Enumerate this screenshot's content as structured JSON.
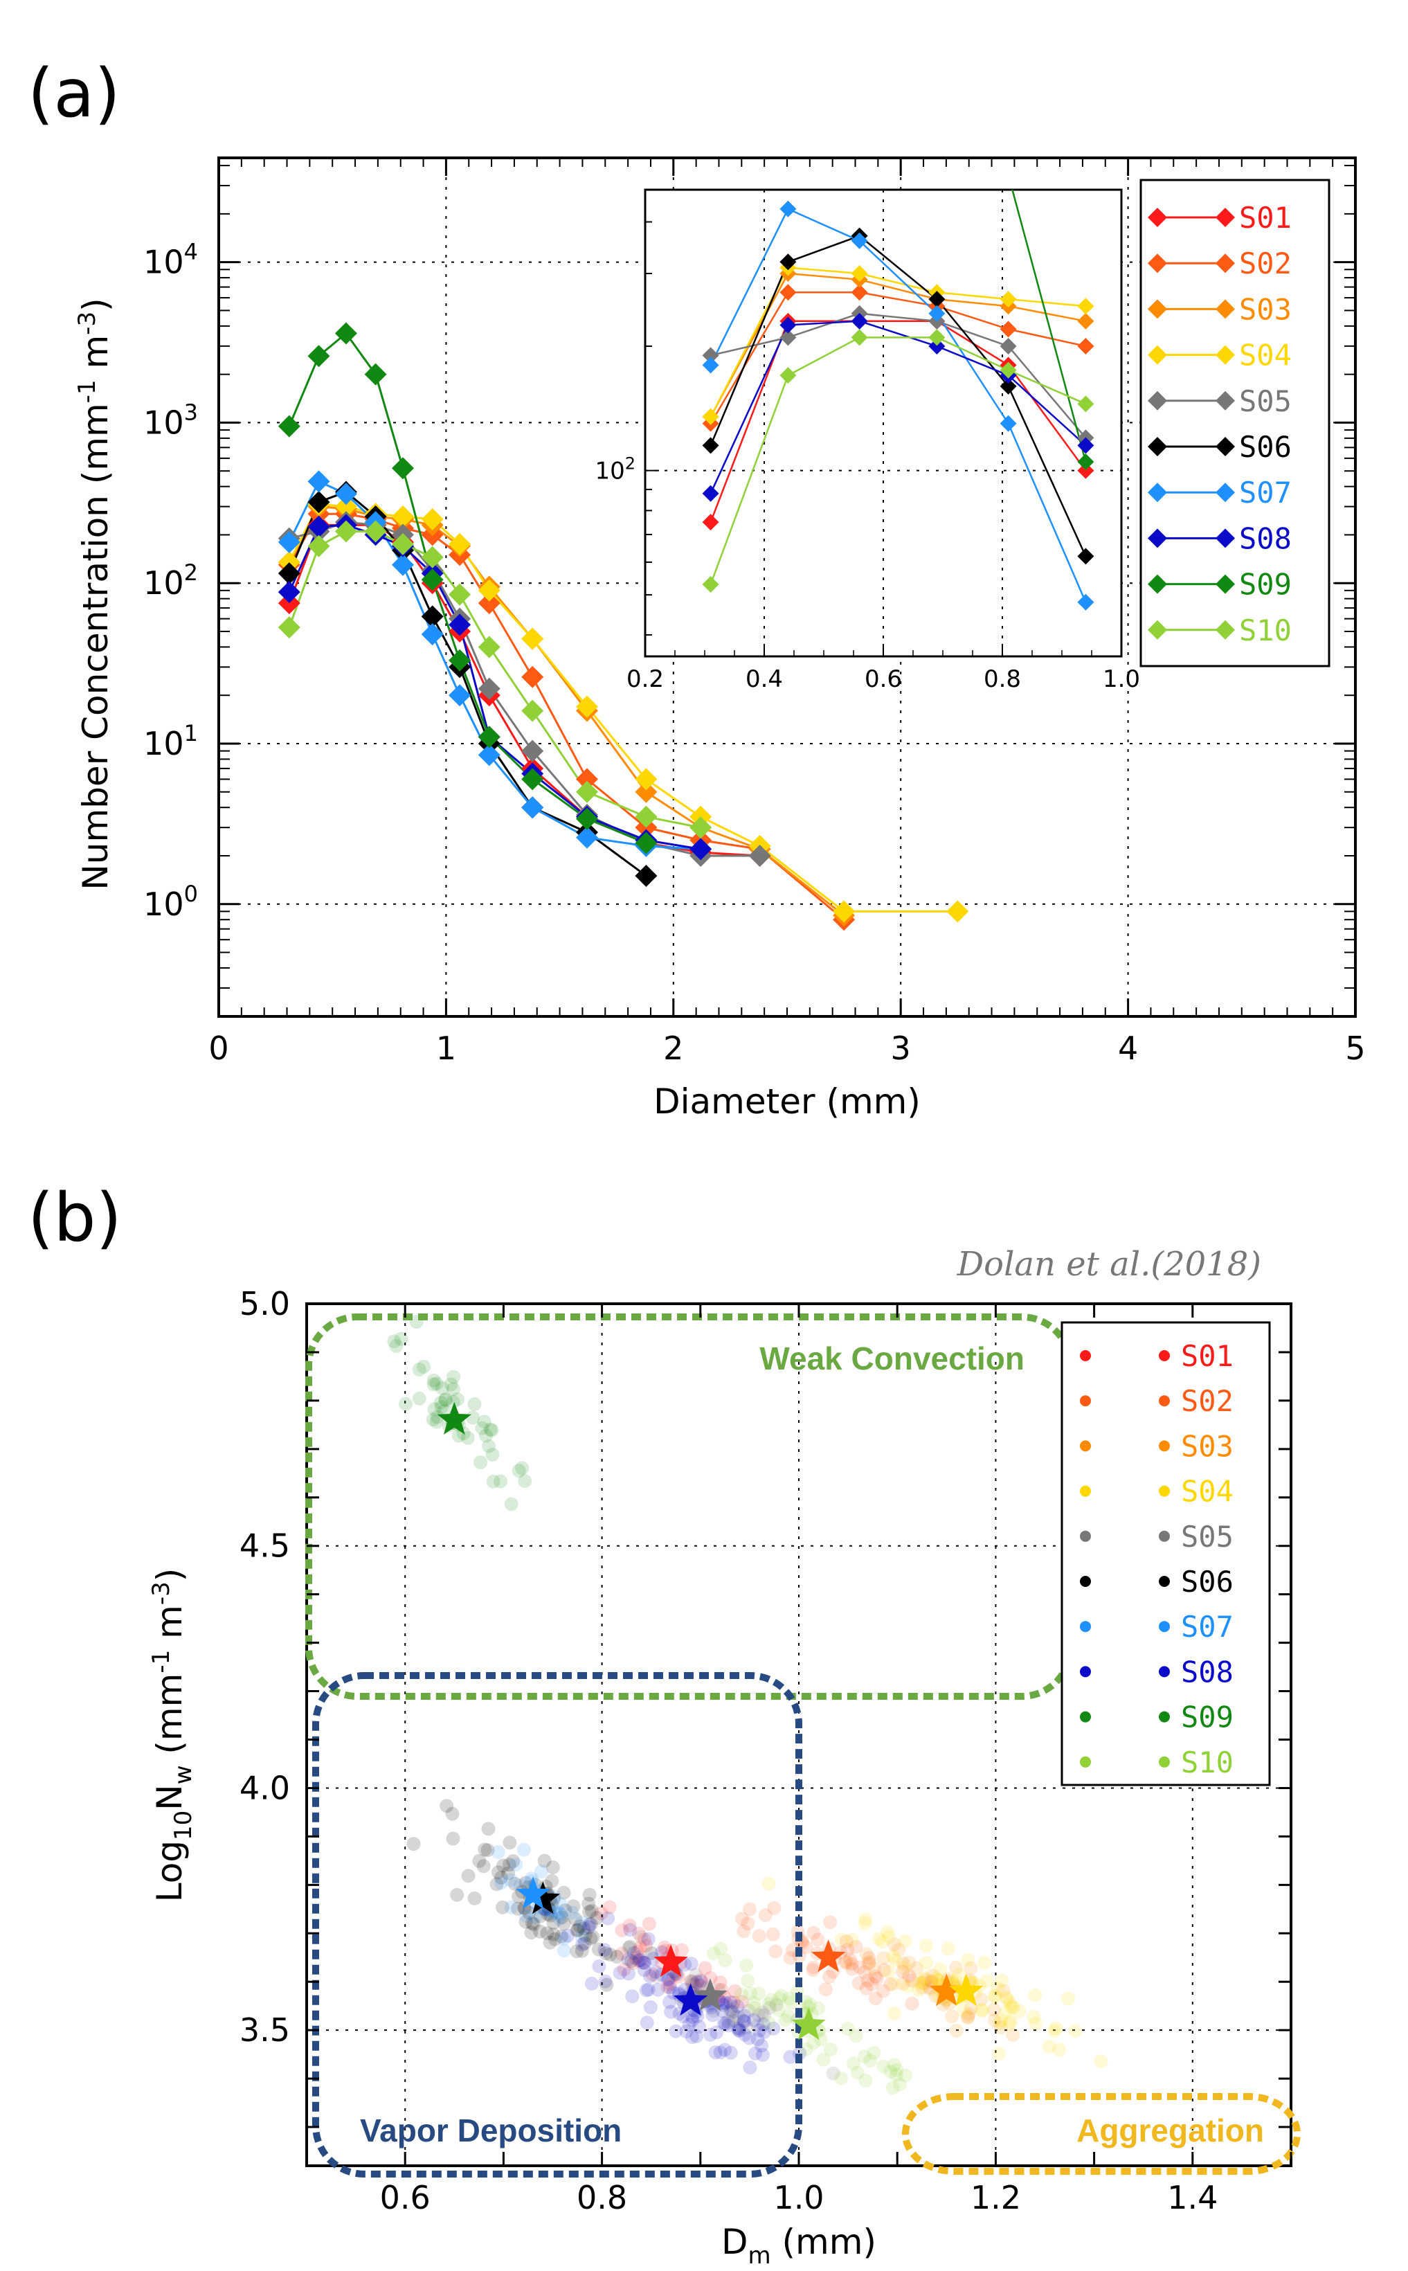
{
  "panel_a_label": "(a)",
  "panel_b_label": "(b)",
  "citation": "Dolan et al.(2018)",
  "chart_data": [
    {
      "type": "line",
      "id": "a",
      "title": "",
      "xlabel": "Diameter (mm)",
      "ylabel_parts": {
        "main": "Number Concentration (mm",
        "sup1": "-1",
        "mid": " m",
        "sup2": "-3",
        "end": ")"
      },
      "xlim": [
        0,
        5
      ],
      "ylim_log10": [
        -0.7,
        4.65
      ],
      "yscale": "log",
      "x_ticks": [
        "0",
        "1",
        "2",
        "3",
        "4",
        "5"
      ],
      "y_ticks": [
        {
          "base": "10",
          "exp": "0"
        },
        {
          "base": "10",
          "exp": "1"
        },
        {
          "base": "10",
          "exp": "2"
        },
        {
          "base": "10",
          "exp": "3"
        },
        {
          "base": "10",
          "exp": "4"
        }
      ],
      "legend_position": "right",
      "series": [
        {
          "name": "S01",
          "color": "#ff1a1a",
          "x": [
            0.31,
            0.44,
            0.56,
            0.69,
            0.81,
            0.94,
            1.06,
            1.19,
            1.38,
            1.62,
            1.88,
            2.12,
            2.38
          ],
          "y": [
            75,
            230,
            230,
            230,
            180,
            100,
            50,
            20,
            7,
            3.5,
            2.4,
            2.1,
            2.0
          ]
        },
        {
          "name": "S02",
          "color": "#ff5a14",
          "x": [
            0.31,
            0.44,
            0.56,
            0.69,
            0.81,
            0.94,
            1.06,
            1.19,
            1.38,
            1.62,
            1.88,
            2.12,
            2.38,
            2.75
          ],
          "y": [
            130,
            270,
            270,
            250,
            220,
            200,
            150,
            75,
            26,
            6,
            3,
            2.5,
            2.2,
            0.8
          ]
        },
        {
          "name": "S03",
          "color": "#ff8c00",
          "x": [
            0.31,
            0.44,
            0.56,
            0.69,
            0.81,
            0.94,
            1.06,
            1.19,
            1.38,
            1.62,
            1.88,
            2.12,
            2.38,
            2.75
          ],
          "y": [
            135,
            300,
            290,
            260,
            250,
            230,
            170,
            95,
            45,
            16,
            5,
            3,
            2.2,
            0.85
          ]
        },
        {
          "name": "S04",
          "color": "#ffd700",
          "x": [
            0.31,
            0.44,
            0.56,
            0.69,
            0.81,
            0.94,
            1.06,
            1.19,
            1.38,
            1.62,
            1.88,
            2.12,
            2.38,
            2.75,
            3.25
          ],
          "y": [
            135,
            310,
            300,
            270,
            260,
            250,
            175,
            90,
            45,
            17,
            6,
            3.5,
            2.3,
            0.9,
            0.9
          ]
        },
        {
          "name": "S05",
          "color": "#777777",
          "x": [
            0.31,
            0.44,
            0.56,
            0.69,
            0.81,
            0.94,
            1.06,
            1.19,
            1.38,
            1.62,
            1.88,
            2.12,
            2.38
          ],
          "y": [
            190,
            210,
            240,
            230,
            200,
            120,
            60,
            22,
            9,
            3.6,
            2.4,
            2.0,
            2.0
          ]
        },
        {
          "name": "S06",
          "color": "#000000",
          "x": [
            0.31,
            0.44,
            0.56,
            0.69,
            0.81,
            0.94,
            1.06,
            1.19,
            1.38,
            1.62,
            1.88
          ],
          "y": [
            115,
            320,
            370,
            260,
            160,
            62,
            30,
            10,
            4,
            2.8,
            1.5
          ]
        },
        {
          "name": "S07",
          "color": "#1e90ff",
          "x": [
            0.31,
            0.44,
            0.56,
            0.69,
            0.81,
            0.94,
            1.06,
            1.19,
            1.38,
            1.62,
            1.88,
            2.12
          ],
          "y": [
            180,
            430,
            360,
            240,
            130,
            48,
            20,
            8.5,
            4,
            2.6,
            2.3,
            2.2
          ]
        },
        {
          "name": "S08",
          "color": "#0a0ac8",
          "x": [
            0.31,
            0.44,
            0.56,
            0.69,
            0.81,
            0.94,
            1.06,
            1.19,
            1.38,
            1.62,
            1.88,
            2.12
          ],
          "y": [
            88,
            225,
            230,
            200,
            170,
            115,
            55,
            11,
            6.5,
            3.5,
            2.5,
            2.2
          ]
        },
        {
          "name": "S09",
          "color": "#118811",
          "x": [
            0.31,
            0.44,
            0.56,
            0.69,
            0.81,
            0.94,
            1.06,
            1.19,
            1.38,
            1.62,
            1.88
          ],
          "y": [
            950,
            2600,
            3600,
            2000,
            520,
            105,
            33,
            11,
            6,
            3.4,
            2.4
          ]
        },
        {
          "name": "S10",
          "color": "#8fd137",
          "x": [
            0.31,
            0.44,
            0.56,
            0.69,
            0.81,
            0.94,
            1.06,
            1.19,
            1.38,
            1.62,
            1.88,
            2.12
          ],
          "y": [
            53,
            170,
            210,
            210,
            175,
            145,
            85,
            40,
            16,
            5,
            3.5,
            3
          ]
        }
      ]
    },
    {
      "type": "line",
      "id": "a-inset",
      "xlim": [
        0.2,
        1.0
      ],
      "ylim_log10": [
        1.55,
        2.68
      ],
      "x_ticks": [
        "0.2",
        "0.4",
        "0.6",
        "0.8",
        "1.0"
      ],
      "y_ticks": [
        {
          "base": "10",
          "exp": "2"
        }
      ],
      "series_ref": "a"
    },
    {
      "type": "scatter",
      "id": "b",
      "xlabel_parts": {
        "main": "D",
        "sub": "m",
        "end": " (mm)"
      },
      "ylabel_parts": {
        "pre": "Log",
        "sub1": "10",
        "n": "N",
        "sub2": "w",
        "mid": " (mm",
        "sup1": "-1",
        "m": " m",
        "sup2": "-3",
        "end": ")"
      },
      "xlim": [
        0.5,
        1.5
      ],
      "ylim": [
        3.22,
        5.0
      ],
      "x_ticks": [
        "0.6",
        "0.8",
        "1.0",
        "1.2",
        "1.4"
      ],
      "y_ticks": [
        "3.5",
        "4.0",
        "4.5",
        "5.0"
      ],
      "legend_position": "right",
      "series": [
        {
          "name": "S01",
          "color": "#ff1a1a",
          "center": [
            0.87,
            3.64
          ],
          "spread": [
            0.035,
            0.05
          ],
          "n": 45
        },
        {
          "name": "S02",
          "color": "#ff5a14",
          "center": [
            1.03,
            3.65
          ],
          "spread": [
            0.05,
            0.05
          ],
          "n": 55
        },
        {
          "name": "S03",
          "color": "#ff8c00",
          "center": [
            1.15,
            3.58
          ],
          "spread": [
            0.04,
            0.05
          ],
          "n": 45
        },
        {
          "name": "S04",
          "color": "#ffd700",
          "center": [
            1.17,
            3.58
          ],
          "spread": [
            0.05,
            0.06
          ],
          "n": 80
        },
        {
          "name": "S05",
          "color": "#777777",
          "center": [
            0.91,
            3.57
          ],
          "spread": [
            0.04,
            0.05
          ],
          "n": 40
        },
        {
          "name": "S06",
          "color": "#000000",
          "center": [
            0.74,
            3.77
          ],
          "spread": [
            0.04,
            0.07
          ],
          "n": 90
        },
        {
          "name": "S07",
          "color": "#1e90ff",
          "center": [
            0.73,
            3.78
          ],
          "spread": [
            0.025,
            0.05
          ],
          "n": 30
        },
        {
          "name": "S08",
          "color": "#0a0ac8",
          "center": [
            0.89,
            3.56
          ],
          "spread": [
            0.05,
            0.08
          ],
          "n": 110
        },
        {
          "name": "S09",
          "color": "#118811",
          "center": [
            0.65,
            4.76
          ],
          "spread": [
            0.03,
            0.08
          ],
          "n": 50
        },
        {
          "name": "S10",
          "color": "#8fd137",
          "center": [
            1.01,
            3.51
          ],
          "spread": [
            0.05,
            0.07
          ],
          "n": 55
        }
      ],
      "regions": [
        {
          "label": "Weak Convection",
          "color": "#6aa842",
          "xrange": [
            0.5,
            1.27
          ],
          "yrange": [
            4.2,
            4.98
          ]
        },
        {
          "label": "Vapor Deposition",
          "color": "#284a82",
          "xrange": [
            0.5,
            1.0
          ],
          "yrange": [
            3.22,
            4.19
          ]
        },
        {
          "label": "Aggregation",
          "color": "#f0b81e",
          "xrange": [
            1.1,
            1.5
          ],
          "yrange": [
            3.22,
            3.39
          ]
        }
      ]
    }
  ]
}
